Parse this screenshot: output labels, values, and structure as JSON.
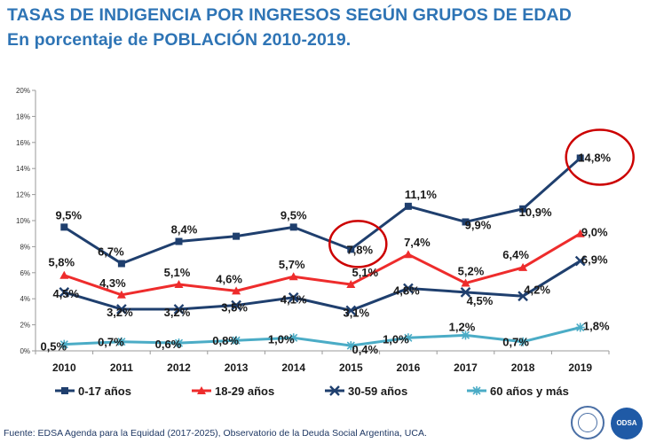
{
  "header": {
    "title": "TASAS DE INDIGENCIA POR INGRESOS SEGÚN GRUPOS DE EDAD",
    "subtitle": "En porcentaje de POBLACIÓN 2010-2019."
  },
  "footer": {
    "source": "Fuente: EDSA Agenda para la Equidad (2017-2025),  Observatorio de la Deuda Social Argentina, UCA.",
    "logo2_text": "ODSA"
  },
  "colors": {
    "series1": "#1f3f6e",
    "series2": "#ee2c2c",
    "series3": "#1f3f6e",
    "series4": "#4bacc6",
    "highlight": "#cc0000",
    "title": "#2e74b5"
  },
  "chart_data": {
    "type": "line",
    "x": [
      "2010",
      "2011",
      "2012",
      "2013",
      "2014",
      "2015",
      "2016",
      "2017",
      "2018",
      "2019"
    ],
    "ylim": [
      0,
      20
    ],
    "yticks": [
      "0%",
      "2%",
      "4%",
      "6%",
      "8%",
      "10%",
      "12%",
      "14%",
      "16%",
      "18%",
      "20%"
    ],
    "grid": false,
    "legend_position": "bottom",
    "series": [
      {
        "name": "0-17 años",
        "marker": "square",
        "values": [
          9.5,
          6.7,
          8.4,
          8.8,
          9.5,
          7.8,
          11.1,
          9.9,
          10.9,
          14.8
        ],
        "labels": [
          "9,5%",
          "6,7%",
          "8,4%",
          "",
          "9,5%",
          "7,8%",
          "11,1%",
          "9,9%",
          "10,9%",
          "14,8%"
        ]
      },
      {
        "name": "18-29 años",
        "marker": "triangle",
        "values": [
          5.8,
          4.3,
          5.1,
          4.6,
          5.7,
          5.1,
          7.4,
          5.2,
          6.4,
          9.0
        ],
        "labels": [
          "5,8%",
          "4,3%",
          "5,1%",
          "4,6%",
          "5,7%",
          "5,1%",
          "7,4%",
          "5,2%",
          "6,4%",
          "9,0%"
        ]
      },
      {
        "name": "30-59 años",
        "marker": "x",
        "values": [
          4.5,
          3.2,
          3.2,
          3.5,
          4.1,
          3.1,
          4.8,
          4.5,
          4.2,
          6.9
        ],
        "labels": [
          "4,5%",
          "3,2%",
          "3,2%",
          "3,5%",
          "4,1%",
          "3,1%",
          "4,8%",
          "4,5%",
          "4,2%",
          "6,9%"
        ]
      },
      {
        "name": "60 años y más",
        "marker": "star",
        "values": [
          0.5,
          0.7,
          0.6,
          0.8,
          1.0,
          0.4,
          1.0,
          1.2,
          0.7,
          1.8
        ],
        "labels": [
          "0,5%",
          "0,7%",
          "0,6%",
          "0,8%",
          "1,0%",
          "0,4%",
          "1,0%",
          "1,2%",
          "0,7%",
          "1,8%"
        ]
      }
    ],
    "highlighted_points": [
      {
        "series": "0-17 años",
        "x": "2015"
      },
      {
        "series": "0-17 años",
        "x": "2019"
      }
    ]
  }
}
